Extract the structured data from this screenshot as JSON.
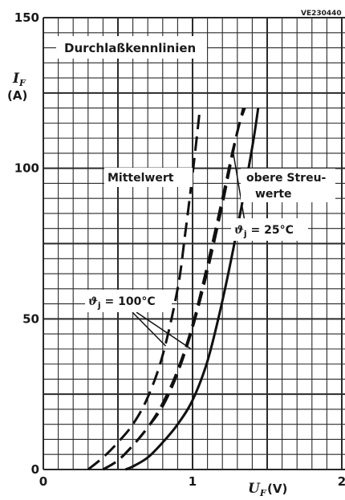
{
  "chart_data": {
    "type": "line",
    "title": "Durchlaßkennlinien",
    "code": "VE230440",
    "xlabel": {
      "symbol": "U",
      "subscript": "F",
      "unit": "(V)"
    },
    "ylabel": {
      "symbol": "I",
      "subscript": "F",
      "unit": "(A)"
    },
    "xlim": [
      0,
      2
    ],
    "ylim": [
      0,
      150
    ],
    "x_ticks": [
      "0",
      "1",
      "2"
    ],
    "y_ticks": [
      "0",
      "50",
      "100",
      "150"
    ],
    "grid": true,
    "legend": "none",
    "series": [
      {
        "name": "Mittelwert",
        "style": "dashed",
        "temperature": "ϑj = 100°C",
        "points": [
          [
            0.3,
            0
          ],
          [
            0.4,
            4
          ],
          [
            0.5,
            9
          ],
          [
            0.6,
            15
          ],
          [
            0.7,
            24
          ],
          [
            0.8,
            38
          ],
          [
            0.9,
            60
          ],
          [
            0.95,
            78
          ],
          [
            1.0,
            98
          ],
          [
            1.05,
            120
          ]
        ]
      },
      {
        "name": "Mittelwert",
        "style": "dashed",
        "temperature": "ϑj = 25°C",
        "points": [
          [
            0.4,
            0
          ],
          [
            0.5,
            3
          ],
          [
            0.6,
            8
          ],
          [
            0.7,
            14
          ],
          [
            0.8,
            21
          ],
          [
            0.9,
            32
          ],
          [
            1.0,
            47
          ],
          [
            1.1,
            66
          ],
          [
            1.2,
            88
          ],
          [
            1.3,
            112
          ],
          [
            1.35,
            120
          ]
        ]
      },
      {
        "name": "obere Streuwerte",
        "style": "dashed",
        "temperature": "ϑj = 100°C",
        "points": [
          [
            0.4,
            0
          ],
          [
            0.5,
            3
          ],
          [
            0.6,
            8
          ],
          [
            0.7,
            14
          ],
          [
            0.8,
            22
          ],
          [
            0.9,
            33
          ],
          [
            1.0,
            48
          ],
          [
            1.1,
            68
          ],
          [
            1.2,
            90
          ],
          [
            1.27,
            106
          ],
          [
            1.34,
            120
          ]
        ]
      },
      {
        "name": "obere Streuwerte",
        "style": "solid",
        "temperature": "ϑj = 25°C",
        "points": [
          [
            0.55,
            0
          ],
          [
            0.6,
            1
          ],
          [
            0.7,
            4
          ],
          [
            0.8,
            9
          ],
          [
            0.9,
            15
          ],
          [
            1.0,
            23
          ],
          [
            1.1,
            36
          ],
          [
            1.2,
            56
          ],
          [
            1.3,
            80
          ],
          [
            1.4,
            107
          ],
          [
            1.44,
            120
          ]
        ]
      }
    ],
    "annotations": [
      {
        "id": "mittelwert",
        "text": "Mittelwert"
      },
      {
        "id": "obere",
        "lines": [
          "obere Streu-",
          "werte"
        ]
      },
      {
        "id": "t25",
        "symbol": "ϑ",
        "subscript": "j",
        "rest": " = 25°C"
      },
      {
        "id": "t100",
        "symbol": "ϑ",
        "subscript": "j",
        "rest": " = 100°C"
      }
    ]
  }
}
